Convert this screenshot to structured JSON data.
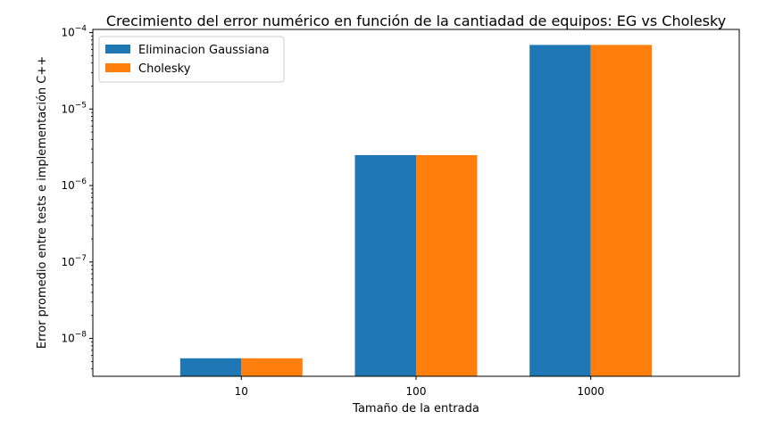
{
  "chart_data": {
    "type": "bar",
    "title": "Crecimiento del error numérico en función de la cantiadad de equipos: EG vs Cholesky",
    "xlabel": "Tamaño de la entrada",
    "ylabel": "Error promedio entre tests e implementación C++",
    "yscale": "log",
    "ylim": [
      3.2e-09,
      0.00011
    ],
    "categories": [
      "10",
      "100",
      "1000"
    ],
    "series": [
      {
        "name": "Eliminacion Gaussiana",
        "color": "#1f77b4",
        "values": [
          5.5e-09,
          2.5e-06,
          6.9e-05
        ]
      },
      {
        "name": "Cholesky",
        "color": "#ff7f0e",
        "values": [
          5.5e-09,
          2.5e-06,
          6.9e-05
        ]
      }
    ],
    "y_ticks": [
      {
        "value": 1e-08,
        "base": "10",
        "exp": "−8"
      },
      {
        "value": 1e-07,
        "base": "10",
        "exp": "−7"
      },
      {
        "value": 1e-06,
        "base": "10",
        "exp": "−6"
      },
      {
        "value": 1e-05,
        "base": "10",
        "exp": "−5"
      },
      {
        "value": 0.0001,
        "base": "10",
        "exp": "−4"
      }
    ],
    "grid": false,
    "legend_position": "upper-left"
  }
}
